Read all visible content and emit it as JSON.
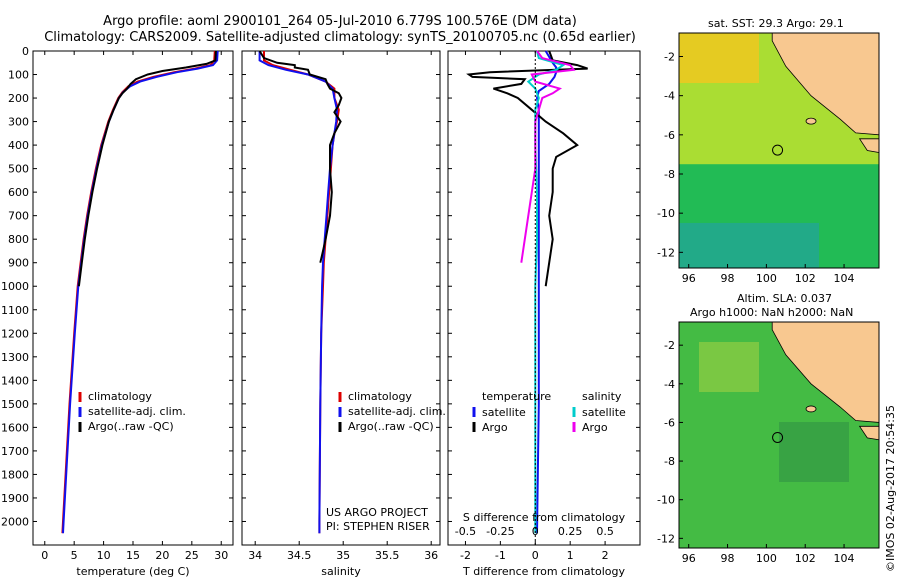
{
  "title_line1": "Argo profile: aoml 2900101_264 05-Jul-2010 6.779S 100.576E (DM data)",
  "title_line2": "Climatology: CARS2009. Satellite-adjusted climatology: synTS_20100705.nc (0.65d earlier)",
  "footer_credit": "©IMOS 02-Aug-2017 20:54:35",
  "colors": {
    "clim": "#dd0000",
    "sat": "#1010ee",
    "argo": "#000000",
    "sat_s": "#00cccc",
    "argo_s": "#ee00ee",
    "land": "#f8c890",
    "grid": "#000000"
  },
  "chart_data": [
    {
      "type": "line",
      "panel": "temperature",
      "xlabel": "temperature (deg C)",
      "ylabel": "",
      "xlim": [
        -2,
        32
      ],
      "ylim": [
        2100,
        0
      ],
      "xticks": [
        0,
        5,
        10,
        15,
        20,
        25,
        30
      ],
      "yticks": [
        0,
        100,
        200,
        300,
        400,
        500,
        600,
        700,
        800,
        900,
        1000,
        1100,
        1200,
        1300,
        1400,
        1500,
        1600,
        1700,
        1800,
        1900,
        2000
      ],
      "legend": [
        "climatology",
        "satellite-adj. clim.",
        "Argo(..raw -QC)"
      ],
      "legend_position": "center-right",
      "series": [
        {
          "name": "climatology",
          "color": "#dd0000",
          "depth": [
            0,
            40,
            60,
            75,
            90,
            110,
            130,
            150,
            175,
            200,
            250,
            300,
            400,
            500,
            600,
            700,
            800,
            900,
            1000,
            1200,
            1500,
            2000,
            2050
          ],
          "values": [
            28.9,
            28.8,
            28.2,
            25.5,
            22,
            18.5,
            15.8,
            14.2,
            13.2,
            12.5,
            11.6,
            10.8,
            9.6,
            8.7,
            7.9,
            7.2,
            6.6,
            6.1,
            5.6,
            5,
            4.2,
            3.1,
            3
          ]
        },
        {
          "name": "satellite-adj. clim.",
          "color": "#1010ee",
          "depth": [
            0,
            40,
            60,
            75,
            90,
            110,
            130,
            150,
            175,
            200,
            250,
            300,
            400,
            500,
            600,
            700,
            800,
            900,
            1000,
            1200,
            1500,
            2000,
            2050
          ],
          "values": [
            29.4,
            29.3,
            28.6,
            26,
            22.5,
            19,
            16.2,
            14.5,
            13.3,
            12.6,
            11.7,
            10.9,
            9.7,
            8.8,
            8,
            7.3,
            6.7,
            6.2,
            5.7,
            5.1,
            4.3,
            3.2,
            3.1
          ]
        },
        {
          "name": "Argo(..raw -QC)",
          "color": "#000000",
          "depth": [
            0,
            40,
            55,
            70,
            85,
            100,
            120,
            140,
            160,
            180,
            200,
            250,
            300,
            400,
            500,
            600,
            700,
            800,
            900,
            1000
          ],
          "values": [
            29.1,
            29,
            27.5,
            24,
            20,
            17.5,
            15.5,
            14.6,
            14,
            13.2,
            12.6,
            11.7,
            10.9,
            9.8,
            8.9,
            8.1,
            7.4,
            6.8,
            6.3,
            5.8
          ]
        }
      ]
    },
    {
      "type": "line",
      "panel": "salinity",
      "xlabel": "salinity",
      "xlim": [
        33.85,
        36.1
      ],
      "ylim": [
        2100,
        0
      ],
      "xticks": [
        34,
        34.5,
        35,
        35.5,
        36
      ],
      "legend": [
        "climatology",
        "satellite-adj. clim.",
        "Argo(..raw -QC)"
      ],
      "legend_position": "center-right",
      "annotations": [
        "US ARGO PROJECT",
        "PI: STEPHEN RISER"
      ],
      "series": [
        {
          "name": "climatology",
          "color": "#dd0000",
          "depth": [
            0,
            40,
            60,
            80,
            100,
            130,
            160,
            200,
            250,
            300,
            350,
            400,
            500,
            600,
            700,
            800,
            900,
            1000,
            1200,
            1500,
            2000,
            2050
          ],
          "values": [
            34.1,
            34.1,
            34.2,
            34.4,
            34.6,
            34.8,
            34.9,
            34.9,
            34.95,
            34.93,
            34.9,
            34.88,
            34.86,
            34.84,
            34.82,
            34.8,
            34.78,
            34.77,
            34.75,
            34.74,
            34.73,
            34.73
          ]
        },
        {
          "name": "satellite-adj. clim.",
          "color": "#1010ee",
          "depth": [
            0,
            40,
            60,
            80,
            100,
            130,
            160,
            200,
            250,
            300,
            350,
            400,
            500,
            600,
            700,
            800,
            900,
            1000,
            1200,
            1500,
            2000,
            2050
          ],
          "values": [
            34.05,
            34.05,
            34.15,
            34.35,
            34.6,
            34.8,
            34.88,
            34.9,
            34.93,
            34.92,
            34.9,
            34.88,
            34.85,
            34.83,
            34.81,
            34.79,
            34.77,
            34.76,
            34.75,
            34.74,
            34.73,
            34.73
          ]
        },
        {
          "name": "Argo(..raw -QC)",
          "color": "#000000",
          "depth": [
            0,
            30,
            50,
            60,
            70,
            80,
            100,
            120,
            140,
            160,
            180,
            200,
            230,
            260,
            300,
            350,
            400,
            500,
            600,
            700,
            800,
            850,
            900
          ],
          "values": [
            34.05,
            34.1,
            34.25,
            34.45,
            34.45,
            34.6,
            34.62,
            34.8,
            34.82,
            34.85,
            34.95,
            34.98,
            34.95,
            34.9,
            34.97,
            34.9,
            34.85,
            34.85,
            34.87,
            34.85,
            34.8,
            34.77,
            34.74
          ]
        }
      ]
    },
    {
      "type": "line",
      "panel": "differences",
      "xlabel": "T difference from climatology",
      "xlabel_top": "S difference from climatology",
      "xlim": [
        -2.5,
        3
      ],
      "ylim": [
        2100,
        0
      ],
      "xticks": [
        -2,
        -1,
        0,
        1,
        2
      ],
      "xticks_top_labels": [
        "-0.5",
        "-0.25",
        "0",
        "0.25",
        "0.5"
      ],
      "legend_temperature": {
        "title": "temperature",
        "items": [
          "satellite",
          "Argo"
        ]
      },
      "legend_salinity": {
        "title": "salinity",
        "items": [
          "satellite",
          "Argo"
        ]
      },
      "series": [
        {
          "name": "satellite",
          "quantity": "temperature",
          "color": "#1010ee",
          "depth": [
            0,
            50,
            70,
            90,
            110,
            140,
            170,
            200,
            250,
            300,
            400,
            600,
            800,
            1000,
            1500,
            2050
          ],
          "values": [
            0.3,
            0.5,
            0.6,
            0.6,
            0.55,
            0.4,
            0.1,
            0.05,
            0.1,
            0.1,
            0.1,
            0.1,
            0.1,
            0.1,
            0.1,
            0.05
          ]
        },
        {
          "name": "Argo",
          "quantity": "temperature",
          "color": "#000000",
          "depth": [
            0,
            40,
            60,
            75,
            90,
            100,
            110,
            120,
            140,
            160,
            180,
            200,
            250,
            300,
            350,
            400,
            450,
            500,
            600,
            700,
            800,
            900,
            1000
          ],
          "values": [
            0.4,
            0.5,
            1.2,
            1.5,
            -1.3,
            -1.9,
            -1.8,
            -0.3,
            -0.4,
            -1.2,
            -0.8,
            -0.5,
            -0.1,
            0.3,
            0.8,
            1.2,
            0.6,
            0.5,
            0.5,
            0.4,
            0.5,
            0.4,
            0.3
          ]
        },
        {
          "name": "satellite",
          "quantity": "salinity",
          "color": "#00cccc",
          "depth": [
            0,
            30,
            60,
            80,
            100,
            130,
            160,
            200,
            250,
            300,
            400,
            600,
            800,
            1000,
            1500,
            2050
          ],
          "values": [
            0.05,
            0.1,
            0.8,
            0.6,
            0.1,
            -0.2,
            0,
            0.1,
            0,
            0,
            0,
            0.05,
            0.05,
            0,
            0,
            0
          ]
        },
        {
          "name": "Argo",
          "quantity": "salinity",
          "color": "#ee00ee",
          "depth": [
            0,
            30,
            60,
            80,
            100,
            130,
            160,
            180,
            200,
            250,
            300,
            400,
            500,
            600,
            700,
            800,
            900
          ],
          "values": [
            0.05,
            0.2,
            1,
            1.1,
            -0.1,
            0,
            0.7,
            0.5,
            0.2,
            0.1,
            0,
            0,
            0,
            -0.1,
            -0.2,
            -0.3,
            -0.4
          ]
        }
      ]
    },
    {
      "type": "heatmap",
      "panel": "sat_sst_map",
      "title": "sat. SST: 29.3  Argo: 29.1",
      "xlim": [
        95.5,
        105.8
      ],
      "ylim": [
        -12.8,
        -0.8
      ],
      "xticks": [
        96,
        98,
        100,
        102,
        104
      ],
      "yticks": [
        -2,
        -4,
        -6,
        -8,
        -10,
        -12
      ],
      "marker": {
        "lon": 100.576,
        "lat": -6.779
      }
    },
    {
      "type": "heatmap",
      "panel": "altim_sla_map",
      "title_line1": "Altim. SLA: 0.037",
      "title_line2": "Argo h1000: NaN h2000: NaN",
      "xlim": [
        95.5,
        105.8
      ],
      "ylim": [
        -12.5,
        -0.8
      ],
      "xticks": [
        96,
        98,
        100,
        102,
        104
      ],
      "yticks": [
        -2,
        -4,
        -6,
        -8,
        -10,
        -12
      ],
      "marker": {
        "lon": 100.576,
        "lat": -6.779
      }
    }
  ]
}
